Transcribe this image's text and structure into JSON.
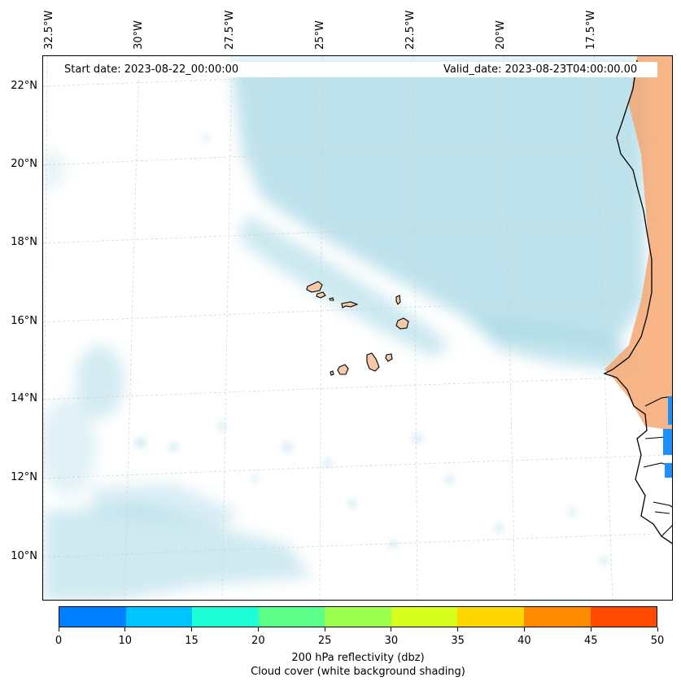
{
  "map": {
    "start_date": "Start date: 2023-08-22_00:00:00",
    "valid_date": "Valid_date: 2023-08-23T04:00:00.00",
    "lon_labels": [
      "32.5°W",
      "30°W",
      "27.5°W",
      "25°W",
      "22.5°W",
      "20°W",
      "17.5°W"
    ],
    "lat_labels": [
      "22°N",
      "20°N",
      "18°N",
      "16°N",
      "14°N",
      "12°N",
      "10°N"
    ],
    "colors": {
      "cloud": "#a8d8e6",
      "land": "#f6c9a8",
      "reflectivity_high": "#f5a36a",
      "reflectivity_low": "#1e8fff"
    }
  },
  "colorbar": {
    "ticks": [
      "0",
      "10",
      "15",
      "20",
      "25",
      "30",
      "35",
      "40",
      "45",
      "50"
    ],
    "colors": [
      "#0080ff",
      "#00c4ff",
      "#1effd8",
      "#5cff8a",
      "#9cff50",
      "#d6ff1e",
      "#ffd700",
      "#ff8c00",
      "#ff4a00"
    ],
    "label": "200 hPa reflectivity (dbz)",
    "sublabel": "Cloud cover (white background shading)"
  }
}
